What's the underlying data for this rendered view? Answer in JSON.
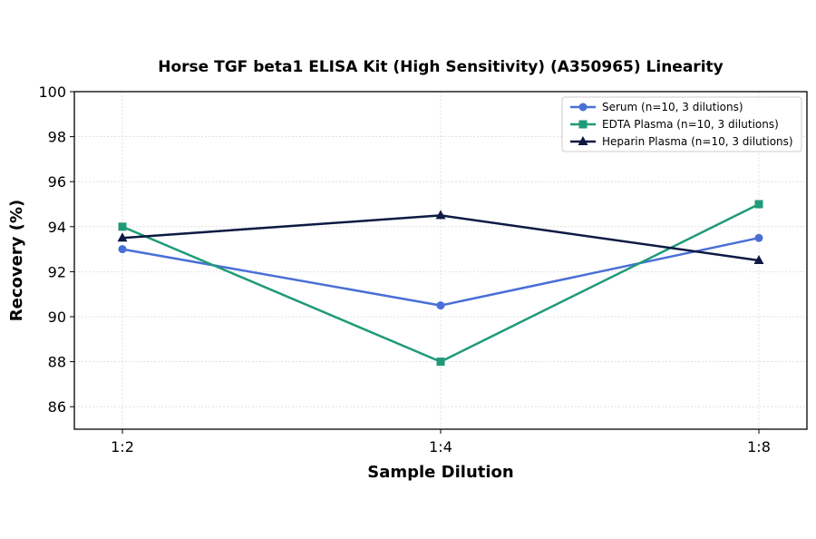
{
  "chart_data": {
    "type": "line",
    "title": "Horse TGF beta1 ELISA Kit (High Sensitivity) (A350965) Linearity",
    "xlabel": "Sample Dilution",
    "ylabel": "Recovery (%)",
    "categories": [
      "1:2",
      "1:4",
      "1:8"
    ],
    "ylim": [
      85,
      100
    ],
    "yticks": [
      86,
      88,
      90,
      92,
      94,
      96,
      98,
      100
    ],
    "grid": true,
    "legend_position": "top-right",
    "series": [
      {
        "name": "Serum (n=10, 3 dilutions)",
        "values": [
          93.0,
          90.5,
          93.5
        ],
        "color": "#4a6fd6",
        "marker": "circle"
      },
      {
        "name": "EDTA Plasma (n=10, 3 dilutions)",
        "values": [
          94.0,
          88.0,
          95.0
        ],
        "color": "#1f9a78",
        "marker": "square"
      },
      {
        "name": "Heparin Plasma (n=10, 3 dilutions)",
        "values": [
          93.5,
          94.5,
          92.5
        ],
        "color": "#0e1a44",
        "marker": "triangle"
      }
    ]
  }
}
